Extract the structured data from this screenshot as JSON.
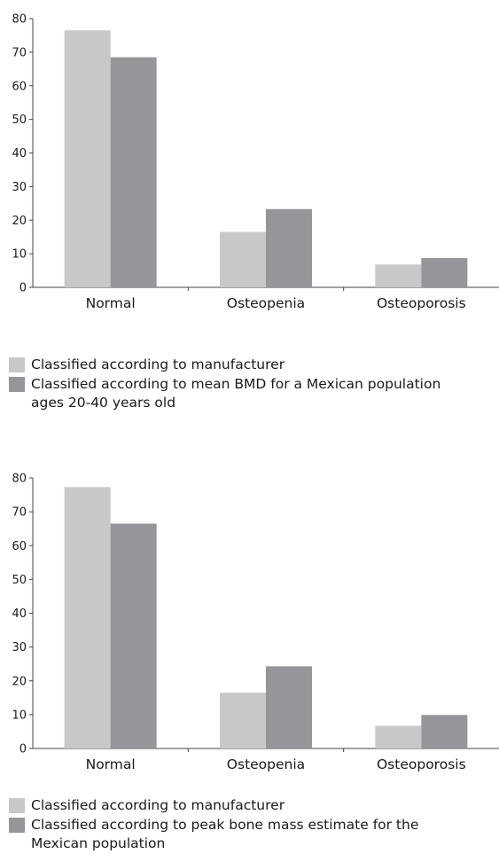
{
  "chart_data": [
    {
      "type": "bar",
      "categories": [
        "Normal",
        "Osteopenia",
        "Osteoporosis"
      ],
      "series": [
        {
          "name": "Classified according to manufacturer",
          "values": [
            76.5,
            16.5,
            6.8
          ],
          "color": "#c8c8c8"
        },
        {
          "name": "Classified according to mean BMD for a Mexican population ages 20-40 years old",
          "values": [
            68.5,
            23.3,
            8.7
          ],
          "color": "#96969a"
        }
      ],
      "ylim": [
        0,
        80
      ],
      "yticks": [
        0,
        10,
        20,
        30,
        40,
        50,
        60,
        70,
        80
      ],
      "grid": false,
      "legend": "bottom-left",
      "title": "",
      "xlabel": "",
      "ylabel": ""
    },
    {
      "type": "bar",
      "categories": [
        "Normal",
        "Osteopenia",
        "Osteoporosis"
      ],
      "series": [
        {
          "name": "Classified according to manufacturer",
          "values": [
            77.3,
            16.5,
            6.7
          ],
          "color": "#c8c8c8"
        },
        {
          "name": "Classified according to peak bone mass estimate for the Mexican population",
          "values": [
            66.5,
            24.3,
            9.9
          ],
          "color": "#96969a"
        }
      ],
      "ylim": [
        0,
        80
      ],
      "yticks": [
        0,
        10,
        20,
        30,
        40,
        50,
        60,
        70,
        80
      ],
      "grid": false,
      "legend": "bottom-left",
      "title": "",
      "xlabel": "",
      "ylabel": ""
    }
  ]
}
